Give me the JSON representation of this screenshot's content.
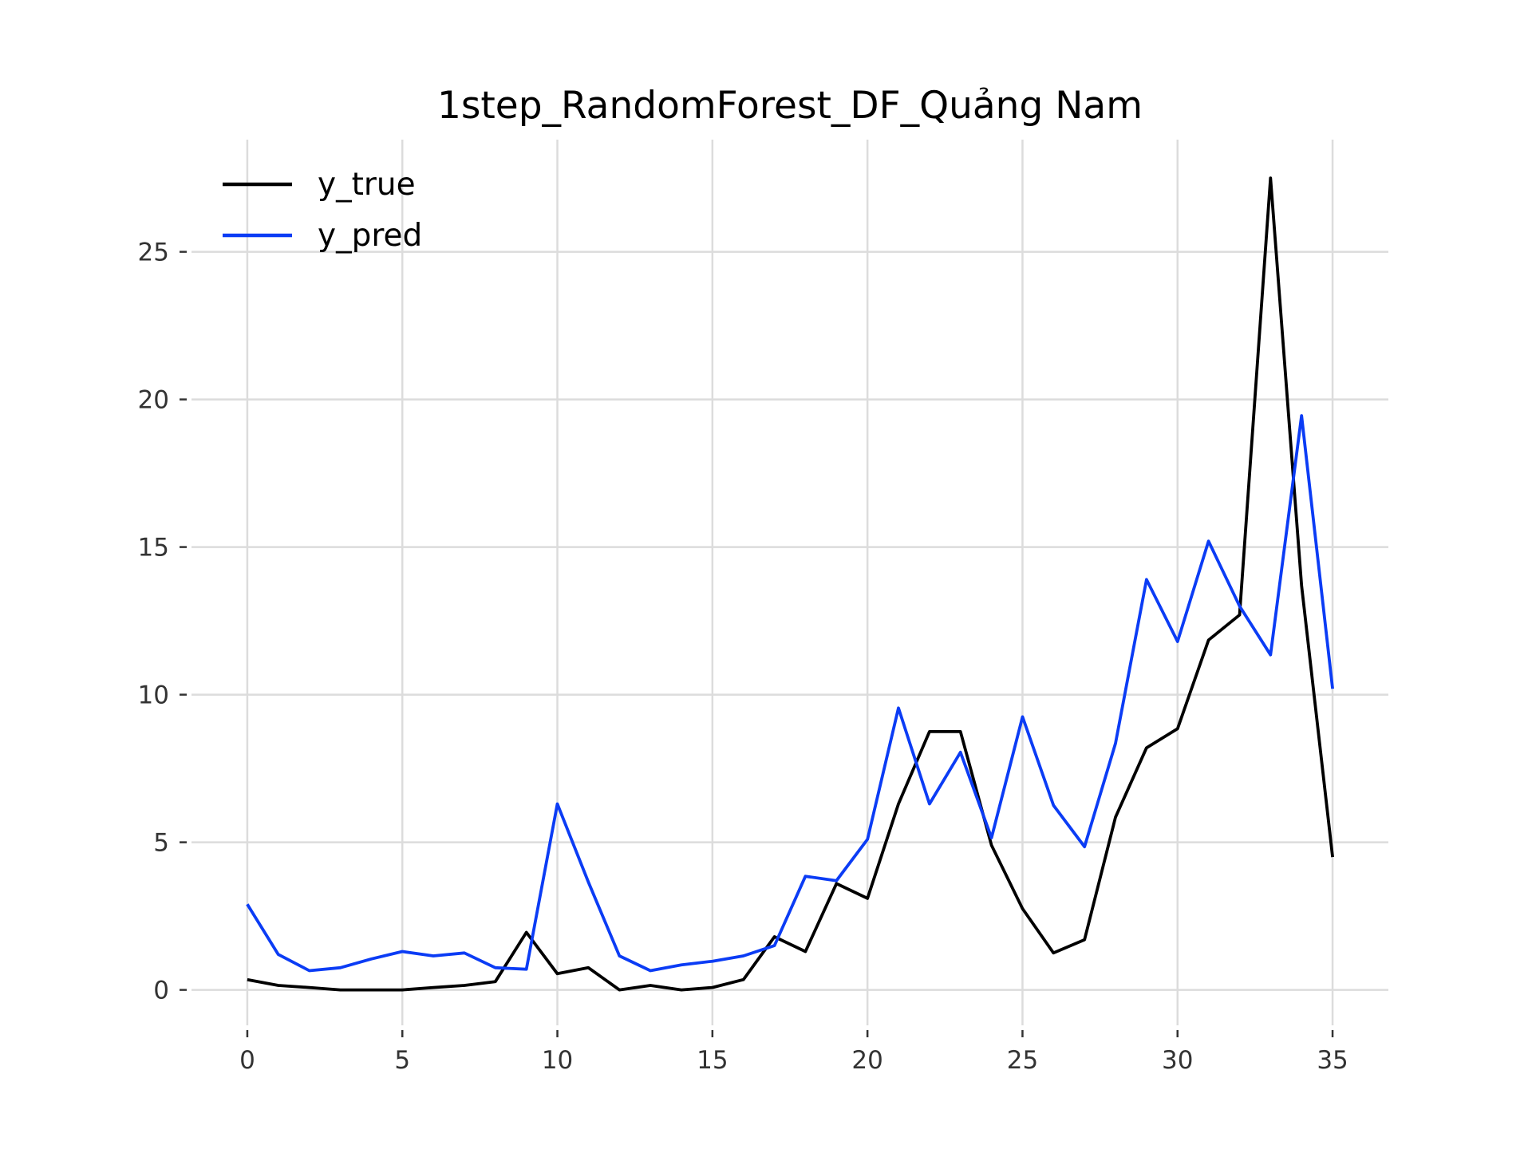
{
  "chart_data": {
    "type": "line",
    "title": "1step_RandomForest_DF_Quảng Nam",
    "xlabel": "",
    "ylabel": "",
    "x": [
      0,
      1,
      2,
      3,
      4,
      5,
      6,
      7,
      8,
      9,
      10,
      11,
      12,
      13,
      14,
      15,
      16,
      17,
      18,
      19,
      20,
      21,
      22,
      23,
      24,
      25,
      26,
      27,
      28,
      29,
      30,
      31,
      32,
      33,
      34,
      35
    ],
    "xlim": [
      -1.8,
      36.8
    ],
    "ylim": [
      -1.2,
      28.8
    ],
    "xticks": [
      0,
      5,
      10,
      15,
      20,
      25,
      30,
      35
    ],
    "yticks": [
      0,
      5,
      10,
      15,
      20,
      25
    ],
    "grid": true,
    "legend_position": "top-left",
    "series": [
      {
        "name": "y_true",
        "color": "#000000",
        "values": [
          0.35,
          0.15,
          0.08,
          0.0,
          0.0,
          0.0,
          0.08,
          0.15,
          0.28,
          1.95,
          0.55,
          0.75,
          0.0,
          0.15,
          0.0,
          0.08,
          0.35,
          1.8,
          1.3,
          3.6,
          3.1,
          6.3,
          8.75,
          8.75,
          4.9,
          2.75,
          1.25,
          1.7,
          5.85,
          8.2,
          8.85,
          11.85,
          12.7,
          27.5,
          13.7,
          4.5
        ]
      },
      {
        "name": "y_pred",
        "color": "#0b3cf5",
        "values": [
          2.9,
          1.2,
          0.65,
          0.75,
          1.05,
          1.3,
          1.15,
          1.25,
          0.75,
          0.7,
          6.3,
          3.65,
          1.15,
          0.65,
          0.85,
          0.97,
          1.15,
          1.5,
          3.85,
          3.7,
          5.1,
          9.55,
          6.3,
          8.05,
          5.15,
          9.25,
          6.25,
          4.85,
          8.35,
          13.9,
          11.8,
          15.2,
          13.0,
          11.35,
          19.45,
          10.2
        ]
      }
    ]
  }
}
